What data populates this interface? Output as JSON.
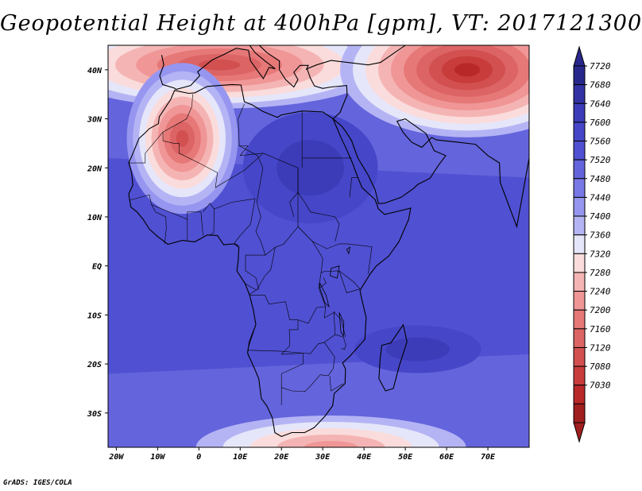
{
  "title": "Geopotential Height at 400hPa [gpm], VT: 2017121300",
  "credit": "GrADS: IGES/COLA",
  "map": {
    "lon_range": [
      -22,
      80
    ],
    "lat_range": [
      -37,
      45
    ],
    "lon_ticks": [
      {
        "value": -20,
        "label": "20W"
      },
      {
        "value": -10,
        "label": "10W"
      },
      {
        "value": 0,
        "label": "0"
      },
      {
        "value": 10,
        "label": "10E"
      },
      {
        "value": 20,
        "label": "20E"
      },
      {
        "value": 30,
        "label": "30E"
      },
      {
        "value": 40,
        "label": "40E"
      },
      {
        "value": 50,
        "label": "50E"
      },
      {
        "value": 60,
        "label": "60E"
      },
      {
        "value": 70,
        "label": "70E"
      }
    ],
    "lat_ticks": [
      {
        "value": 40,
        "label": "40N"
      },
      {
        "value": 30,
        "label": "30N"
      },
      {
        "value": 20,
        "label": "20N"
      },
      {
        "value": 10,
        "label": "10N"
      },
      {
        "value": 0,
        "label": "EQ"
      },
      {
        "value": -10,
        "label": "10S"
      },
      {
        "value": -20,
        "label": "20S"
      },
      {
        "value": -30,
        "label": "30S"
      }
    ]
  },
  "colorbar": {
    "labels": [
      "7720",
      "7680",
      "7640",
      "7600",
      "7560",
      "7520",
      "7480",
      "7440",
      "7400",
      "7360",
      "7320",
      "7280",
      "7240",
      "7200",
      "7160",
      "7120",
      "7080",
      "7030"
    ],
    "colors": [
      "#28288c",
      "#3232a5",
      "#3c3cb9",
      "#4646c8",
      "#5050d2",
      "#6464dc",
      "#7878e6",
      "#9696f0",
      "#b4b4f5",
      "#e6e6fa",
      "#fadcdc",
      "#f5b4b4",
      "#f09696",
      "#e67878",
      "#dc6464",
      "#d25050",
      "#c83c3c",
      "#b92828",
      "#a01e1e"
    ]
  },
  "fields": {
    "low_west_africa": [
      -4,
      26
    ],
    "low_europe": [
      5,
      41
    ],
    "low_central_asia": [
      65,
      40
    ],
    "low_south_atlantic": [
      32,
      -37
    ],
    "high_sudan": [
      27,
      20
    ],
    "high_mozambique": [
      53,
      -17
    ]
  }
}
